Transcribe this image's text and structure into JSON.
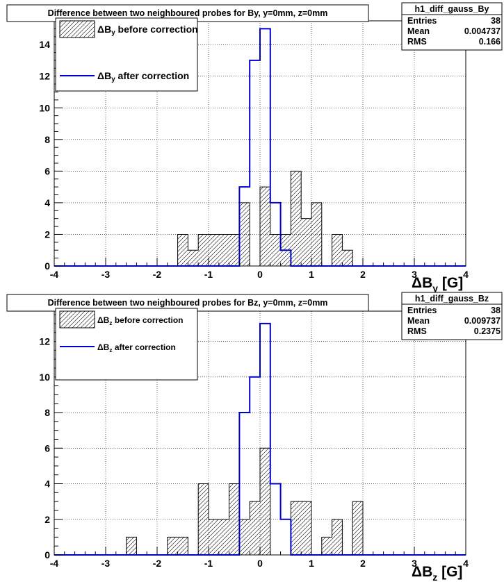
{
  "chart_data": [
    {
      "type": "histogram",
      "title": "Difference between two neighboured probes for By, y=0mm, z=0mm",
      "xlabel_main": "ΔB",
      "xlabel_sub": "y",
      "xlabel_unit": " [G]",
      "xlim": [
        -4,
        4
      ],
      "ylim": [
        0,
        15.5
      ],
      "bin_width": 0.2,
      "x_ticks": [
        "-4",
        "-3",
        "-2",
        "-1",
        "0",
        "1",
        "2",
        "3",
        "4"
      ],
      "y_ticks": [
        "0",
        "2",
        "4",
        "6",
        "8",
        "10",
        "12",
        "14"
      ],
      "y_tick_values": [
        0,
        2,
        4,
        6,
        8,
        10,
        12,
        14
      ],
      "grid": true,
      "stats": {
        "name": "h1_diff_gauss_By",
        "rows": [
          {
            "label": "Entries",
            "value": "38"
          },
          {
            "label": "Mean",
            "value": "0.004737"
          },
          {
            "label": "RMS",
            "value": "0.166"
          }
        ]
      },
      "legend": [
        {
          "pre": "ΔB",
          "sub": "y",
          "post": " before correction",
          "style": "hatched"
        },
        {
          "pre": "ΔB",
          "sub": "y",
          "post": " after correction",
          "style": "line",
          "color": "#0000cc"
        }
      ],
      "series": [
        {
          "name": "before correction",
          "style": "hatched",
          "bins": [
            {
              "x": -1.6,
              "y": 2
            },
            {
              "x": -1.4,
              "y": 1
            },
            {
              "x": -1.2,
              "y": 2
            },
            {
              "x": -1.0,
              "y": 2
            },
            {
              "x": -0.8,
              "y": 2
            },
            {
              "x": -0.6,
              "y": 2
            },
            {
              "x": -0.4,
              "y": 4
            },
            {
              "x": -0.2,
              "y": 0
            },
            {
              "x": -0.0,
              "y": 5
            },
            {
              "x": 0.2,
              "y": 2
            },
            {
              "x": 0.4,
              "y": 2
            },
            {
              "x": 0.6,
              "y": 6
            },
            {
              "x": 0.8,
              "y": 3
            },
            {
              "x": 1.0,
              "y": 4
            },
            {
              "x": 1.2,
              "y": 0
            },
            {
              "x": 1.4,
              "y": 2
            },
            {
              "x": 1.6,
              "y": 1
            }
          ]
        },
        {
          "name": "after correction",
          "style": "line",
          "color": "#0000cc",
          "bins": [
            {
              "x": -0.4,
              "y": 5
            },
            {
              "x": -0.2,
              "y": 13
            },
            {
              "x": 0.0,
              "y": 15
            },
            {
              "x": 0.2,
              "y": 4
            },
            {
              "x": 0.4,
              "y": 1
            }
          ]
        }
      ]
    },
    {
      "type": "histogram",
      "title": "Difference between two neighboured probes for Bz, y=0mm, z=0mm",
      "xlabel_main": "ΔB",
      "xlabel_sub": "z",
      "xlabel_unit": " [G]",
      "xlim": [
        -4,
        4
      ],
      "ylim": [
        0,
        13.7
      ],
      "bin_width": 0.2,
      "x_ticks": [
        "-4",
        "-3",
        "-2",
        "-1",
        "0",
        "1",
        "2",
        "3",
        "4"
      ],
      "y_ticks": [
        "0",
        "2",
        "4",
        "6",
        "8",
        "10",
        "12"
      ],
      "y_tick_values": [
        0,
        2,
        4,
        6,
        8,
        10,
        12
      ],
      "grid": true,
      "stats": {
        "name": "h1_diff_gauss_Bz",
        "rows": [
          {
            "label": "Entries",
            "value": "38"
          },
          {
            "label": "Mean",
            "value": "0.009737"
          },
          {
            "label": "RMS",
            "value": "0.2375"
          }
        ]
      },
      "legend": [
        {
          "pre": "ΔB",
          "sub": "z",
          "post": " before correction",
          "style": "hatched"
        },
        {
          "pre": "ΔB",
          "sub": "z",
          "post": " after correction",
          "style": "line",
          "color": "#0000cc"
        }
      ],
      "series": [
        {
          "name": "before correction",
          "style": "hatched",
          "bins": [
            {
              "x": -2.6,
              "y": 1
            },
            {
              "x": -2.4,
              "y": 0
            },
            {
              "x": -2.2,
              "y": 0
            },
            {
              "x": -2.0,
              "y": 0
            },
            {
              "x": -1.8,
              "y": 1
            },
            {
              "x": -1.6,
              "y": 1
            },
            {
              "x": -1.4,
              "y": 0
            },
            {
              "x": -1.2,
              "y": 4
            },
            {
              "x": -1.0,
              "y": 2
            },
            {
              "x": -0.8,
              "y": 2
            },
            {
              "x": -0.6,
              "y": 4
            },
            {
              "x": -0.4,
              "y": 2
            },
            {
              "x": -0.2,
              "y": 3
            },
            {
              "x": 0.0,
              "y": 6
            },
            {
              "x": 0.2,
              "y": 0
            },
            {
              "x": 0.4,
              "y": 0
            },
            {
              "x": 0.6,
              "y": 3
            },
            {
              "x": 0.8,
              "y": 3
            },
            {
              "x": 1.0,
              "y": 0
            },
            {
              "x": 1.2,
              "y": 1
            },
            {
              "x": 1.4,
              "y": 2
            },
            {
              "x": 1.6,
              "y": 0
            },
            {
              "x": 1.8,
              "y": 3
            }
          ]
        },
        {
          "name": "after correction",
          "style": "line",
          "color": "#0000cc",
          "bins": [
            {
              "x": -0.4,
              "y": 8
            },
            {
              "x": -0.2,
              "y": 10
            },
            {
              "x": 0.0,
              "y": 13
            },
            {
              "x": 0.2,
              "y": 4
            },
            {
              "x": 0.4,
              "y": 2
            }
          ]
        }
      ]
    }
  ]
}
